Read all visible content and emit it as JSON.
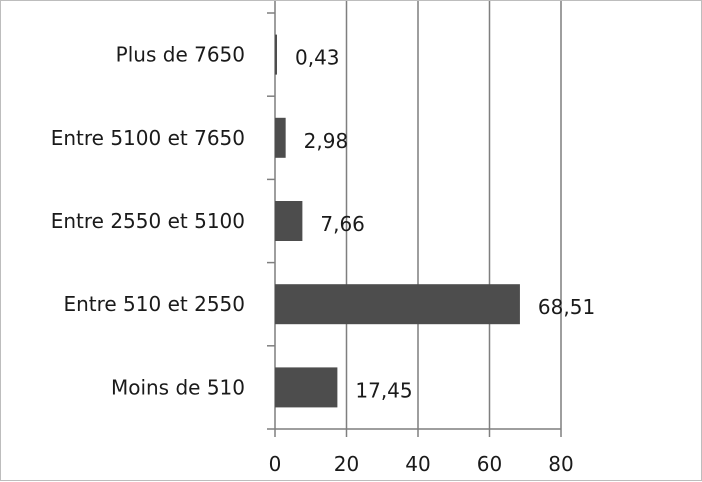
{
  "chart_data": {
    "type": "bar",
    "orientation": "horizontal",
    "categories": [
      "Moins de 510",
      "Entre 510 et 2550",
      "Entre 2550 et 5100",
      "Entre 5100 et 7650",
      "Plus de 7650"
    ],
    "values": [
      17.45,
      68.51,
      7.66,
      2.98,
      0.43
    ],
    "value_labels": [
      "17,45",
      "68,51",
      "7,66",
      "2,98",
      "0,43"
    ],
    "xlim": [
      0,
      80
    ],
    "ticks": [
      0,
      20,
      40,
      60,
      80
    ],
    "tick_labels": [
      "0",
      "20",
      "40",
      "60",
      "80"
    ],
    "grid": "vertical",
    "colors": {
      "bar": "#4d4d4d",
      "grid": "#7f7f7f",
      "axis": "#7f7f7f"
    }
  }
}
